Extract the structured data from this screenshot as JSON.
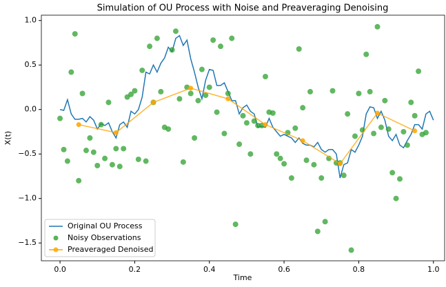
{
  "chart_data": {
    "type": "line",
    "title": "Simulation of OU Process with Noise and Preaveraging Denoising",
    "xlabel": "Time",
    "ylabel": "X(t)",
    "xlim": [
      -0.05,
      1.03
    ],
    "ylim": [
      -1.7,
      1.06
    ],
    "xticks": [
      {
        "value": 0,
        "label": "0.0"
      },
      0.2,
      0.4,
      0.6,
      0.8,
      {
        "value": 1,
        "label": "1.0"
      }
    ],
    "yticks": [
      {
        "value": -1.5,
        "label": "−1.5"
      },
      {
        "value": -1,
        "label": "−1.0"
      },
      {
        "value": -0.5,
        "label": "−0.5"
      },
      {
        "value": 0,
        "label": "0.0"
      },
      {
        "value": 0.5,
        "label": "0.5"
      },
      {
        "value": 1,
        "label": "1.0"
      }
    ],
    "legend": "lower left",
    "series": [
      {
        "name": "Original OU Process",
        "color": "#1f77b4",
        "line": true,
        "marker": false,
        "x": [
          0,
          0.01,
          0.02,
          0.03,
          0.04,
          0.05,
          0.06,
          0.07,
          0.08,
          0.09,
          0.1,
          0.11,
          0.12,
          0.13,
          0.14,
          0.15,
          0.16,
          0.17,
          0.18,
          0.19,
          0.2,
          0.21,
          0.22,
          0.23,
          0.24,
          0.25,
          0.26,
          0.27,
          0.28,
          0.29,
          0.3,
          0.31,
          0.32,
          0.33,
          0.34,
          0.35,
          0.36,
          0.37,
          0.38,
          0.39,
          0.4,
          0.41,
          0.42,
          0.43,
          0.44,
          0.45,
          0.46,
          0.47,
          0.48,
          0.49,
          0.5,
          0.51,
          0.52,
          0.53,
          0.54,
          0.55,
          0.56,
          0.57,
          0.58,
          0.59,
          0.6,
          0.61,
          0.62,
          0.63,
          0.64,
          0.65,
          0.66,
          0.67,
          0.68,
          0.69,
          0.7,
          0.71,
          0.72,
          0.73,
          0.74,
          0.75,
          0.76,
          0.77,
          0.78,
          0.79,
          0.8,
          0.81,
          0.82,
          0.83,
          0.84,
          0.85,
          0.86,
          0.87,
          0.88,
          0.89,
          0.9,
          0.91,
          0.92,
          0.93,
          0.94,
          0.95,
          0.96,
          0.97,
          0.98,
          0.99,
          1
        ],
        "values": [
          0,
          -0.01,
          0.11,
          -0.05,
          -0.11,
          -0.11,
          -0.1,
          -0.14,
          -0.08,
          -0.12,
          -0.22,
          -0.16,
          -0.18,
          -0.15,
          -0.25,
          -0.32,
          -0.17,
          -0.14,
          -0.2,
          -0.02,
          -0.05,
          0,
          0.14,
          0.42,
          0.4,
          0.5,
          0.42,
          0.52,
          0.58,
          0.7,
          0.65,
          0.8,
          0.83,
          0.72,
          0.78,
          0.57,
          0.42,
          0.25,
          0.12,
          0.33,
          0.45,
          0.44,
          0.27,
          0.27,
          0.3,
          0.2,
          0.1,
          0.1,
          -0.05,
          0.02,
          0.05,
          -0.02,
          -0.05,
          -0.2,
          -0.19,
          -0.2,
          -0.1,
          -0.2,
          -0.25,
          -0.3,
          -0.28,
          -0.3,
          -0.32,
          -0.37,
          -0.32,
          -0.38,
          -0.4,
          -0.4,
          -0.42,
          -0.37,
          -0.45,
          -0.48,
          -0.45,
          -0.45,
          -0.5,
          -0.77,
          -0.62,
          -0.6,
          -0.45,
          -0.48,
          -0.4,
          -0.3,
          -0.05,
          0.03,
          0.02,
          -0.1,
          -0.02,
          -0.12,
          -0.3,
          -0.35,
          -0.28,
          -0.4,
          -0.43,
          -0.35,
          -0.28,
          -0.17,
          -0.17,
          -0.22,
          -0.05,
          -0.02,
          -0.12
        ]
      },
      {
        "name": "Noisy Observations",
        "color": "#2ca02c",
        "line": false,
        "marker": true,
        "x": [
          0,
          0.01,
          0.02,
          0.03,
          0.04,
          0.05,
          0.06,
          0.07,
          0.08,
          0.09,
          0.1,
          0.11,
          0.12,
          0.13,
          0.14,
          0.15,
          0.16,
          0.17,
          0.18,
          0.19,
          0.2,
          0.21,
          0.22,
          0.23,
          0.24,
          0.25,
          0.26,
          0.27,
          0.28,
          0.29,
          0.3,
          0.31,
          0.32,
          0.33,
          0.34,
          0.35,
          0.36,
          0.37,
          0.38,
          0.39,
          0.4,
          0.41,
          0.42,
          0.43,
          0.44,
          0.45,
          0.46,
          0.47,
          0.48,
          0.49,
          0.5,
          0.51,
          0.52,
          0.53,
          0.54,
          0.55,
          0.56,
          0.57,
          0.58,
          0.59,
          0.6,
          0.61,
          0.62,
          0.63,
          0.64,
          0.65,
          0.66,
          0.67,
          0.68,
          0.69,
          0.7,
          0.71,
          0.72,
          0.73,
          0.74,
          0.75,
          0.76,
          0.77,
          0.78,
          0.79,
          0.8,
          0.81,
          0.82,
          0.83,
          0.84,
          0.85,
          0.86,
          0.87,
          0.88,
          0.89,
          0.9,
          0.91,
          0.92,
          0.93,
          0.94,
          0.95,
          0.96,
          0.97,
          0.98
        ],
        "values": [
          -0.1,
          -0.45,
          -0.58,
          0.42,
          0.85,
          -0.8,
          0.18,
          -0.46,
          -0.32,
          -0.48,
          -0.63,
          -0.17,
          -0.55,
          0.08,
          -0.62,
          -0.44,
          -0.64,
          -0.44,
          0.14,
          0.17,
          0.21,
          -0.56,
          0.44,
          -0.58,
          0.71,
          0.08,
          0.8,
          0.2,
          -0.2,
          -0.22,
          0.67,
          0.88,
          0.12,
          -0.59,
          0.25,
          0.18,
          -0.32,
          0.1,
          0.45,
          0.16,
          0.25,
          0.78,
          -0.03,
          0.71,
          -0.27,
          0.18,
          0.8,
          -1.29,
          -0.39,
          -0.07,
          -0.15,
          -0.5,
          -0.13,
          -0.18,
          -0.18,
          0.37,
          -0.03,
          -0.04,
          -0.5,
          -0.55,
          -0.61,
          -0.26,
          -0.77,
          -0.21,
          0.68,
          0.02,
          -0.57,
          0.2,
          -0.62,
          -1.37,
          -0.77,
          -1.26,
          -0.55,
          0.21,
          -0.6,
          -0.6,
          -0.74,
          -0.05,
          -1.58,
          -0.3,
          0.18,
          -0.23,
          0.62,
          0.2,
          -0.27,
          0.93,
          -0.2,
          0.1,
          -0.22,
          -0.71,
          -1,
          -0.78,
          -0.25,
          -0.4,
          0.08,
          -0.07,
          0.43,
          -0.28,
          -0.26
        ]
      },
      {
        "name": "Preaveraged Denoised",
        "color": "#ffa500",
        "line": true,
        "marker": true,
        "x": [
          0.05,
          0.15,
          0.25,
          0.35,
          0.45,
          0.55,
          0.65,
          0.75,
          0.85,
          0.95
        ],
        "values": [
          -0.17,
          -0.26,
          0.08,
          0.24,
          0.12,
          -0.17,
          -0.35,
          -0.61,
          -0.04,
          -0.24
        ]
      }
    ]
  }
}
